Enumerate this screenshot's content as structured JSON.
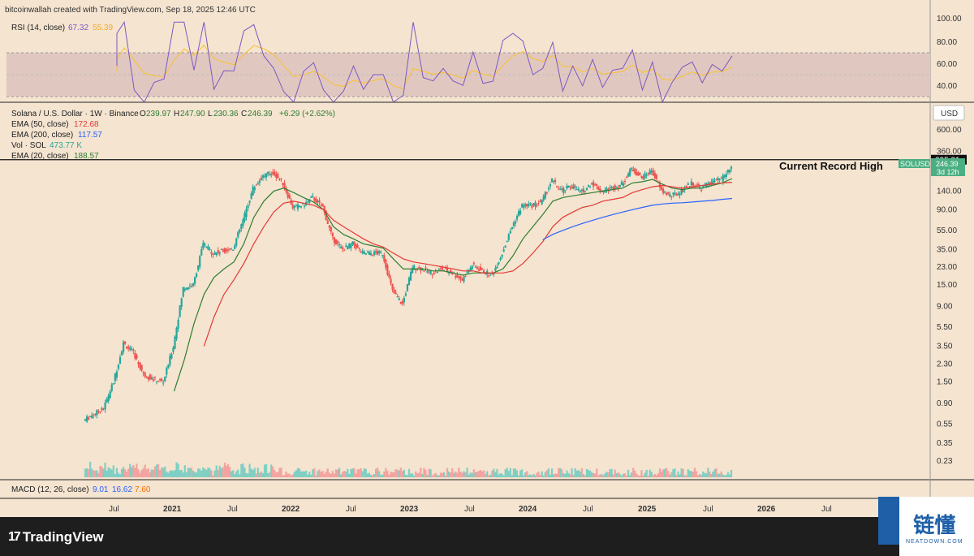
{
  "header": {
    "attribution": "bitcoinwallah created with TradingView.com, Sep 18, 2025 12:46 UTC"
  },
  "rsi": {
    "title": "RSI (14, close)",
    "value1": "67.32",
    "value2": "55.39",
    "ticks": [
      "100.00",
      "80.00",
      "60.00",
      "40.00"
    ]
  },
  "legend": {
    "symbol": "Solana / U.S. Dollar · 1W · Binance",
    "o_label": "O",
    "o_value": "239.97",
    "h_label": "H",
    "h_value": "247.90",
    "l_label": "L",
    "l_value": "230.36",
    "c_label": "C",
    "c_value": "246.39",
    "change": "+6.29 (+2.62%)",
    "ema50_label": "EMA (50, close)",
    "ema50_value": "172.68",
    "ema200_label": "EMA (200, close)",
    "ema200_value": "117.57",
    "vol_label": "Vol · SOL",
    "vol_value": "473.77 K",
    "ema20_label": "EMA (20, close)",
    "ema20_value": "188.57"
  },
  "price_axis": {
    "currency": "USD",
    "ticks": [
      "600.00",
      "360.00",
      "140.00",
      "90.00",
      "55.00",
      "35.00",
      "23.00",
      "15.00",
      "9.00",
      "5.50",
      "3.50",
      "2.30",
      "1.50",
      "0.90",
      "0.55",
      "0.35",
      "0.23"
    ]
  },
  "annotation": {
    "record_price": "295.31",
    "record_text": "Current Record High",
    "symbol_tag": "SOLUSD",
    "last_price": "246.39",
    "countdown": "3d 12h"
  },
  "macd": {
    "title": "MACD (12, 26, close)",
    "v1": "9.01",
    "v2": "16.62",
    "v3": "7.60"
  },
  "time_axis": {
    "labels": [
      "Jul",
      "2021",
      "Jul",
      "2022",
      "Jul",
      "2023",
      "Jul",
      "2024",
      "Jul",
      "2025",
      "Jul",
      "2026",
      "Jul"
    ]
  },
  "branding": {
    "tv_name": "TradingView",
    "watermark_cn": "链懂",
    "watermark_en": "NEATDOWN.COM"
  },
  "colors": {
    "background": "#f4e4d0",
    "up": "#26a69a",
    "down": "#ef5350",
    "ema20": "#2e7d32",
    "ema50": "#e53935",
    "ema200": "#2962ff",
    "rsi": "#7e57c2",
    "rsi_ma": "#fbc02d"
  },
  "chart_data": {
    "type": "candlestick",
    "scale": "log",
    "x": [
      "2020-04",
      "2020-05",
      "2020-06",
      "2020-07",
      "2020-08",
      "2020-09",
      "2020-10",
      "2020-11",
      "2020-12",
      "2021-01",
      "2021-02",
      "2021-03",
      "2021-04",
      "2021-05",
      "2021-06",
      "2021-07",
      "2021-08",
      "2021-09",
      "2021-10",
      "2021-11",
      "2021-12",
      "2022-01",
      "2022-02",
      "2022-03",
      "2022-04",
      "2022-05",
      "2022-06",
      "2022-07",
      "2022-08",
      "2022-09",
      "2022-10",
      "2022-11",
      "2022-12",
      "2023-01",
      "2023-02",
      "2023-03",
      "2023-04",
      "2023-05",
      "2023-06",
      "2023-07",
      "2023-08",
      "2023-09",
      "2023-10",
      "2023-11",
      "2023-12",
      "2024-01",
      "2024-02",
      "2024-03",
      "2024-04",
      "2024-05",
      "2024-06",
      "2024-07",
      "2024-08",
      "2024-09",
      "2024-10",
      "2024-11",
      "2024-12",
      "2025-01",
      "2025-02",
      "2025-03",
      "2025-04",
      "2025-05",
      "2025-06",
      "2025-07",
      "2025-08",
      "2025-09"
    ],
    "close": [
      0.6,
      0.7,
      0.8,
      1.5,
      3.8,
      3.0,
      1.8,
      1.6,
      1.5,
      3.5,
      14,
      15,
      40,
      32,
      34,
      36,
      70,
      150,
      200,
      220,
      170,
      95,
      100,
      120,
      95,
      45,
      35,
      40,
      32,
      32,
      32,
      13,
      9.5,
      23,
      22,
      20,
      22,
      20,
      17,
      24,
      21,
      19,
      32,
      60,
      100,
      100,
      110,
      180,
      140,
      160,
      135,
      170,
      140,
      150,
      165,
      240,
      190,
      230,
      140,
      125,
      140,
      170,
      150,
      175,
      185,
      246.39
    ],
    "ema20": [
      null,
      null,
      null,
      null,
      null,
      null,
      null,
      null,
      null,
      1.2,
      2.5,
      6,
      12,
      18,
      22,
      26,
      40,
      75,
      110,
      140,
      150,
      135,
      120,
      108,
      90,
      60,
      50,
      45,
      40,
      38,
      36,
      28,
      22,
      22,
      22,
      21,
      21,
      20,
      19,
      20,
      20,
      20,
      22,
      30,
      45,
      60,
      80,
      110,
      120,
      125,
      130,
      135,
      140,
      145,
      150,
      170,
      175,
      185,
      165,
      150,
      145,
      150,
      150,
      160,
      170,
      188.57
    ],
    "ema50": [
      null,
      null,
      null,
      null,
      null,
      null,
      null,
      null,
      null,
      null,
      null,
      null,
      3.5,
      7,
      12,
      17,
      25,
      40,
      60,
      85,
      105,
      110,
      105,
      100,
      90,
      70,
      60,
      52,
      45,
      40,
      37,
      32,
      28,
      26,
      25,
      24,
      23,
      22,
      21,
      21,
      20,
      20,
      20,
      21,
      25,
      32,
      42,
      60,
      75,
      85,
      95,
      100,
      110,
      115,
      120,
      135,
      145,
      155,
      160,
      155,
      150,
      155,
      160,
      165,
      170,
      172.68
    ],
    "ema200": [
      null,
      null,
      null,
      null,
      null,
      null,
      null,
      null,
      null,
      null,
      null,
      null,
      null,
      null,
      null,
      null,
      null,
      null,
      null,
      null,
      null,
      null,
      null,
      null,
      null,
      null,
      null,
      null,
      null,
      null,
      null,
      null,
      null,
      null,
      null,
      null,
      null,
      null,
      null,
      null,
      null,
      null,
      null,
      null,
      null,
      null,
      44,
      50,
      55,
      60,
      65,
      70,
      75,
      80,
      85,
      90,
      95,
      100,
      103,
      105,
      106,
      108,
      110,
      112,
      115,
      117.57
    ],
    "record_high": 295.31,
    "ylim": [
      0.2,
      700
    ]
  }
}
